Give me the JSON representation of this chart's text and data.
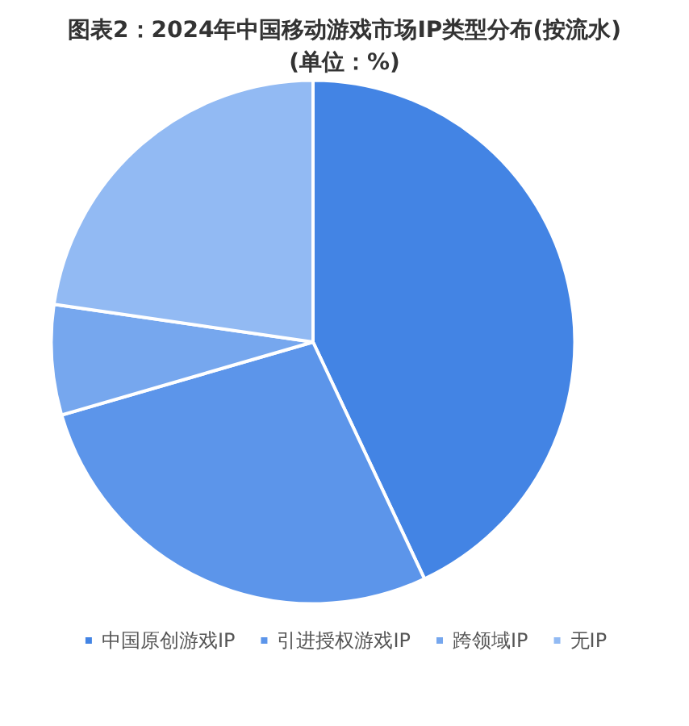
{
  "chart_data": {
    "type": "pie",
    "title": "图表2：2024年中国移动游戏市场IP类型分布(按流水)\n(单位：%)",
    "categories": [
      "中国原创游戏IP",
      "引进授权游戏IP",
      "跨领域IP",
      "无IP"
    ],
    "values": [
      43,
      27.5,
      6.8,
      22.7
    ],
    "colors": [
      "#4384e4",
      "#5c95ea",
      "#76a7ee",
      "#92baf3"
    ],
    "legend": "bottom"
  }
}
